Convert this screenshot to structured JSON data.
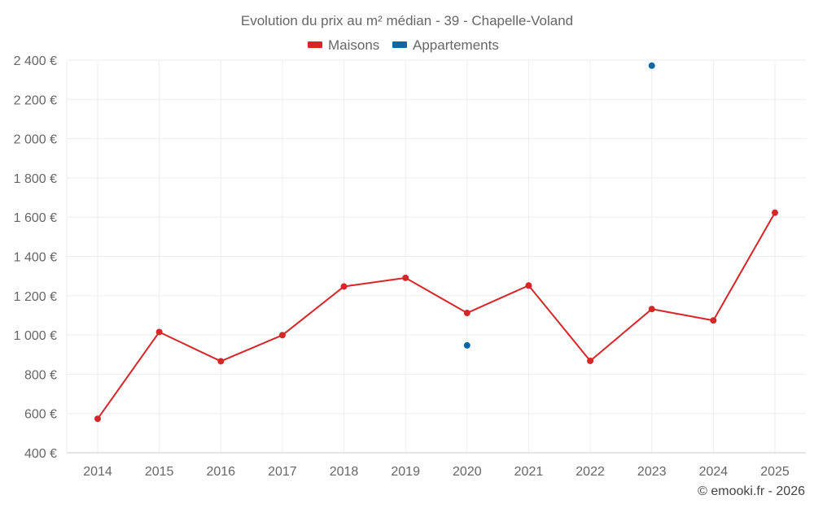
{
  "chart_data": {
    "type": "line",
    "title": "Evolution du prix au m² médian - 39 - Chapelle-Voland",
    "categories": [
      "2014",
      "2015",
      "2016",
      "2017",
      "2018",
      "2019",
      "2020",
      "2021",
      "2022",
      "2023",
      "2024",
      "2025"
    ],
    "series": [
      {
        "name": "Maisons",
        "color": "#d62728",
        "values": [
          573,
          1015,
          866,
          999,
          1247,
          1291,
          1112,
          1252,
          868,
          1132,
          1074,
          1623
        ]
      },
      {
        "name": "Appartements",
        "color": "#0a68a8",
        "values": [
          null,
          null,
          null,
          null,
          null,
          null,
          947,
          null,
          null,
          2372,
          null,
          null
        ]
      }
    ],
    "ylim": [
      400,
      2400
    ],
    "yticks": [
      400,
      600,
      800,
      1000,
      1200,
      1400,
      1600,
      1800,
      2000,
      2200,
      2400
    ],
    "ytick_labels": [
      "400 €",
      "600 €",
      "800 €",
      "1 000 €",
      "1 200 €",
      "1 400 €",
      "1 600 €",
      "1 800 €",
      "2 000 €",
      "2 200 €",
      "2 400 €"
    ],
    "xlabel": "",
    "ylabel": "",
    "grid": true,
    "legend_position": "top-center"
  },
  "credit": "© emooki.fr - 2026"
}
